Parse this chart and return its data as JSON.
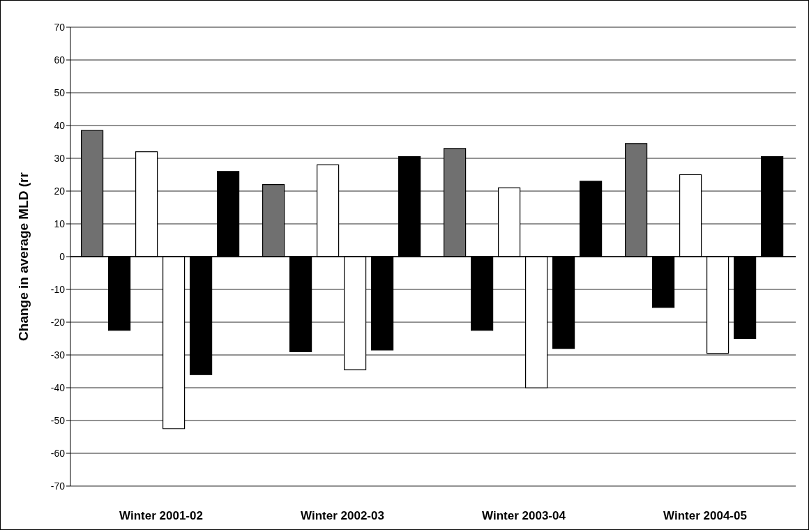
{
  "chart_data": {
    "type": "bar",
    "ylabel": "Change in average MLD (rr",
    "categories": [
      "Winter 2001-02",
      "Winter 2002-03",
      "Winter 2003-04",
      "Winter 2004-05"
    ],
    "series": [
      {
        "color": "#707070",
        "values": [
          38.5,
          22,
          33,
          34.5
        ]
      },
      {
        "color": "#000000",
        "values": [
          -22.5,
          -29,
          -22.5,
          -15.5
        ]
      },
      {
        "color": "#ffffff",
        "values": [
          32,
          28,
          21,
          25
        ]
      },
      {
        "color": "#ffffff",
        "values": [
          -52.5,
          -34.5,
          -40,
          -29.5
        ]
      },
      {
        "color": "#000000",
        "values": [
          -36,
          -28.5,
          -28,
          -25
        ]
      },
      {
        "color": "#000000",
        "values": [
          26,
          30.5,
          23,
          30.5
        ]
      }
    ],
    "ylim": [
      -70,
      70
    ],
    "yticks": [
      -70,
      -60,
      -50,
      -40,
      -30,
      -20,
      -10,
      0,
      10,
      20,
      30,
      40,
      50,
      60,
      70
    ],
    "grid": "y"
  }
}
